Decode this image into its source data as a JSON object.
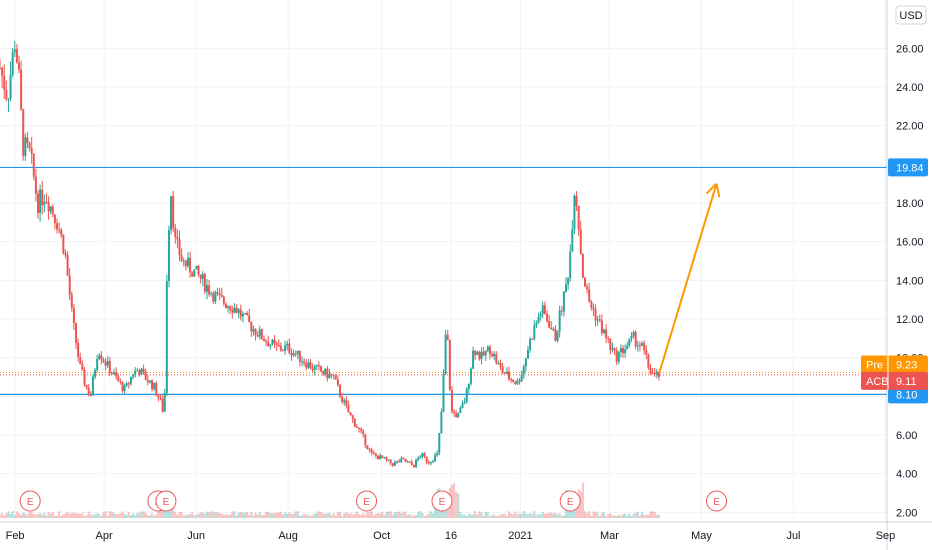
{
  "chart_data": {
    "type": "candlestick",
    "currency": "USD",
    "y_ticks": [
      "2.00",
      "4.00",
      "6.00",
      "8.00",
      "10.00",
      "12.00",
      "14.00",
      "16.00",
      "18.00",
      "20.00",
      "22.00",
      "24.00",
      "26.00"
    ],
    "ylim": [
      1.5,
      28.5
    ],
    "x_ticks": [
      "Feb",
      "Apr",
      "Jun",
      "Aug",
      "Oct",
      "16",
      "2021",
      "Mar",
      "May",
      "Jul",
      "Sep"
    ],
    "x_tick_days": [
      0,
      59,
      120,
      181,
      243,
      289,
      335,
      394,
      455,
      516,
      577
    ],
    "xlim_days": [
      -10,
      578
    ],
    "horizontal_levels": [
      {
        "label": "19.84",
        "value": 19.84,
        "color": "#2196f3"
      },
      {
        "label": "8.10",
        "value": 8.1,
        "color": "#2196f3"
      }
    ],
    "price_badges": [
      {
        "name": "Pre",
        "value_label": "9.23",
        "value": 9.23,
        "color": "#ff9800"
      },
      {
        "name": "ACB",
        "value_label": "9.11",
        "value": 9.11,
        "color": "#ef5350"
      }
    ],
    "projection_arrow": {
      "color": "#ff9800",
      "from": {
        "day": 427,
        "value": 9.2
      },
      "to": {
        "day": 465,
        "value": 19.0
      }
    },
    "earnings_events": [
      {
        "label": "E",
        "day": 10
      },
      {
        "label": "E",
        "day": 100
      },
      {
        "label": "E",
        "day": 100
      },
      {
        "label": "E",
        "day": 233
      },
      {
        "label": "E",
        "day": 283
      },
      {
        "label": "E",
        "day": 368
      },
      {
        "label": "E",
        "day": 465
      }
    ],
    "price_path": [
      [
        -10,
        25.0
      ],
      [
        -5,
        23.5
      ],
      [
        0,
        26.5
      ],
      [
        3,
        24.0
      ],
      [
        5,
        21.0
      ],
      [
        10,
        20.5
      ],
      [
        15,
        18.0
      ],
      [
        20,
        18.5
      ],
      [
        28,
        17.0
      ],
      [
        33,
        15.5
      ],
      [
        38,
        12.0
      ],
      [
        43,
        9.5
      ],
      [
        47,
        8.5
      ],
      [
        50,
        8.0
      ],
      [
        55,
        10.5
      ],
      [
        58,
        10.0
      ],
      [
        62,
        9.5
      ],
      [
        68,
        8.8
      ],
      [
        73,
        8.3
      ],
      [
        78,
        9.2
      ],
      [
        82,
        9.4
      ],
      [
        86,
        9.0
      ],
      [
        92,
        8.5
      ],
      [
        96,
        7.8
      ],
      [
        99,
        7.0
      ],
      [
        100,
        13.0
      ],
      [
        103,
        19.0
      ],
      [
        106,
        16.0
      ],
      [
        111,
        15.0
      ],
      [
        118,
        14.5
      ],
      [
        124,
        14.0
      ],
      [
        129,
        13.5
      ],
      [
        135,
        13.0
      ],
      [
        141,
        12.8
      ],
      [
        147,
        12.5
      ],
      [
        152,
        12.0
      ],
      [
        158,
        11.5
      ],
      [
        165,
        11.0
      ],
      [
        173,
        10.5
      ],
      [
        181,
        10.5
      ],
      [
        189,
        10.0
      ],
      [
        197,
        9.5
      ],
      [
        205,
        9.2
      ],
      [
        211,
        9.0
      ],
      [
        216,
        8.0
      ],
      [
        222,
        7.0
      ],
      [
        230,
        6.0
      ],
      [
        236,
        5.0
      ],
      [
        243,
        4.8
      ],
      [
        250,
        4.5
      ],
      [
        257,
        4.7
      ],
      [
        264,
        4.4
      ],
      [
        269,
        5.0
      ],
      [
        274,
        4.6
      ],
      [
        280,
        5.0
      ],
      [
        283,
        7.5
      ],
      [
        286,
        12.0
      ],
      [
        289,
        7.2
      ],
      [
        294,
        7.0
      ],
      [
        299,
        8.0
      ],
      [
        304,
        10.5
      ],
      [
        309,
        10.0
      ],
      [
        315,
        10.5
      ],
      [
        321,
        9.5
      ],
      [
        327,
        9.0
      ],
      [
        333,
        8.7
      ],
      [
        337,
        9.5
      ],
      [
        340,
        10.5
      ],
      [
        344,
        11.5
      ],
      [
        349,
        12.5
      ],
      [
        354,
        11.8
      ],
      [
        358,
        11.0
      ],
      [
        362,
        12.5
      ],
      [
        366,
        14.0
      ],
      [
        368,
        15.5
      ],
      [
        371,
        19.0
      ],
      [
        373,
        17.5
      ],
      [
        376,
        14.5
      ],
      [
        380,
        13.0
      ],
      [
        386,
        12.0
      ],
      [
        392,
        11.0
      ],
      [
        398,
        10.0
      ],
      [
        404,
        10.5
      ],
      [
        410,
        11.0
      ],
      [
        416,
        10.5
      ],
      [
        420,
        9.5
      ],
      [
        424,
        9.0
      ],
      [
        427,
        9.11
      ]
    ]
  }
}
